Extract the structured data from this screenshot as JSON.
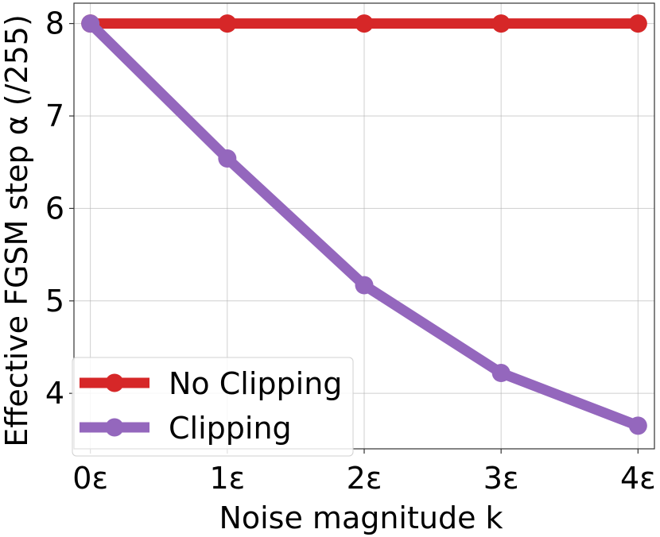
{
  "chart_data": {
    "type": "line",
    "title": "",
    "xlabel": "Noise magnitude k",
    "ylabel": "Effective FGSM step α (/255)",
    "categories": [
      "0ε",
      "1ε",
      "2ε",
      "3ε",
      "4ε"
    ],
    "x": [
      0,
      1,
      2,
      3,
      4
    ],
    "xlim": [
      -0.12,
      4.12
    ],
    "ylim": [
      3.4,
      8.22
    ],
    "yticks": [
      4,
      5,
      6,
      7,
      8
    ],
    "ytick_labels": [
      "4",
      "5",
      "6",
      "7",
      "8"
    ],
    "grid": true,
    "legend_position": "lower-left",
    "series": [
      {
        "name": "No Clipping",
        "color": "#d62728",
        "values": [
          8,
          8,
          8,
          8,
          8
        ]
      },
      {
        "name": "Clipping",
        "color": "#9467bd",
        "values": [
          8,
          6.54,
          5.17,
          4.22,
          3.65
        ]
      }
    ]
  }
}
